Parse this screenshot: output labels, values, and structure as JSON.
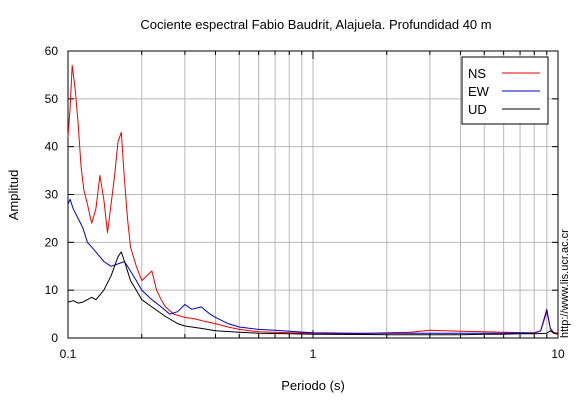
{
  "chart_data": {
    "type": "line",
    "title": "Cociente espectral Fabio Baudrit, Alajuela. Profundidad 40 m",
    "xlabel": "Periodo (s)",
    "ylabel": "Amplitud",
    "x_scale": "log",
    "xlim": [
      0.1,
      10
    ],
    "ylim": [
      0,
      60
    ],
    "x_ticks": [
      "0.1",
      "1",
      "10"
    ],
    "y_ticks": [
      "0",
      "10",
      "20",
      "30",
      "40",
      "50",
      "60"
    ],
    "grid": true,
    "legend_position": "top-right",
    "watermark": "http://www.lis.ucr.ac.cr",
    "series": [
      {
        "name": "NS",
        "color": "#ee0000",
        "x": [
          0.1,
          0.102,
          0.104,
          0.107,
          0.11,
          0.113,
          0.116,
          0.12,
          0.125,
          0.13,
          0.135,
          0.14,
          0.145,
          0.15,
          0.155,
          0.16,
          0.165,
          0.17,
          0.175,
          0.18,
          0.19,
          0.2,
          0.21,
          0.22,
          0.23,
          0.24,
          0.25,
          0.27,
          0.3,
          0.33,
          0.36,
          0.4,
          0.45,
          0.5,
          0.6,
          0.8,
          1,
          1.5,
          2,
          2.5,
          3,
          4,
          5,
          6,
          7,
          8,
          8.5,
          9,
          9.3,
          9.6,
          10
        ],
        "values": [
          42,
          48,
          57,
          52,
          45,
          36,
          31,
          28,
          24,
          27,
          34,
          29,
          22,
          28,
          34,
          41,
          43,
          33,
          25,
          19,
          15,
          12,
          13,
          14,
          10,
          8,
          6.5,
          5,
          4.3,
          4,
          3.5,
          3,
          2.3,
          1.8,
          1.3,
          1.1,
          1,
          0.9,
          1.1,
          1.2,
          1.6,
          1.4,
          1.3,
          1.2,
          1.1,
          1.1,
          1.5,
          5.5,
          2,
          1.2,
          1
        ]
      },
      {
        "name": "EW",
        "color": "#0000cc",
        "x": [
          0.1,
          0.102,
          0.105,
          0.11,
          0.115,
          0.12,
          0.125,
          0.13,
          0.14,
          0.15,
          0.16,
          0.17,
          0.18,
          0.19,
          0.2,
          0.22,
          0.24,
          0.26,
          0.28,
          0.3,
          0.32,
          0.35,
          0.38,
          0.4,
          0.45,
          0.5,
          0.6,
          0.7,
          0.8,
          1,
          1.5,
          2,
          3,
          4,
          5,
          6,
          7,
          8,
          8.5,
          9,
          9.3,
          9.6,
          10
        ],
        "values": [
          28,
          29,
          27,
          25,
          23,
          20,
          19,
          18,
          16,
          15,
          15.5,
          16,
          14,
          12,
          10,
          8,
          6.5,
          5,
          5.5,
          7,
          6,
          6.5,
          5,
          4.3,
          3,
          2.3,
          1.8,
          1.6,
          1.4,
          1.1,
          1,
          1,
          1,
          1,
          1,
          1,
          1.1,
          1,
          1.5,
          6,
          2,
          1,
          0.8
        ]
      },
      {
        "name": "UD",
        "color": "#000000",
        "x": [
          0.1,
          0.105,
          0.11,
          0.115,
          0.12,
          0.125,
          0.13,
          0.135,
          0.14,
          0.15,
          0.16,
          0.165,
          0.17,
          0.18,
          0.19,
          0.2,
          0.22,
          0.25,
          0.28,
          0.3,
          0.35,
          0.4,
          0.5,
          0.6,
          0.8,
          1,
          2,
          3,
          4,
          5,
          6,
          7,
          8,
          9,
          9.3,
          9.6,
          10
        ],
        "values": [
          7.5,
          7.8,
          7.3,
          7.5,
          8,
          8.5,
          8,
          9,
          10,
          13,
          17,
          18,
          16,
          12,
          10,
          8,
          6.5,
          4.5,
          3,
          2.5,
          2,
          1.5,
          1.2,
          1,
          0.9,
          0.8,
          0.7,
          0.7,
          0.7,
          0.8,
          0.8,
          0.9,
          0.9,
          1,
          1.5,
          1,
          0.8
        ]
      }
    ]
  }
}
